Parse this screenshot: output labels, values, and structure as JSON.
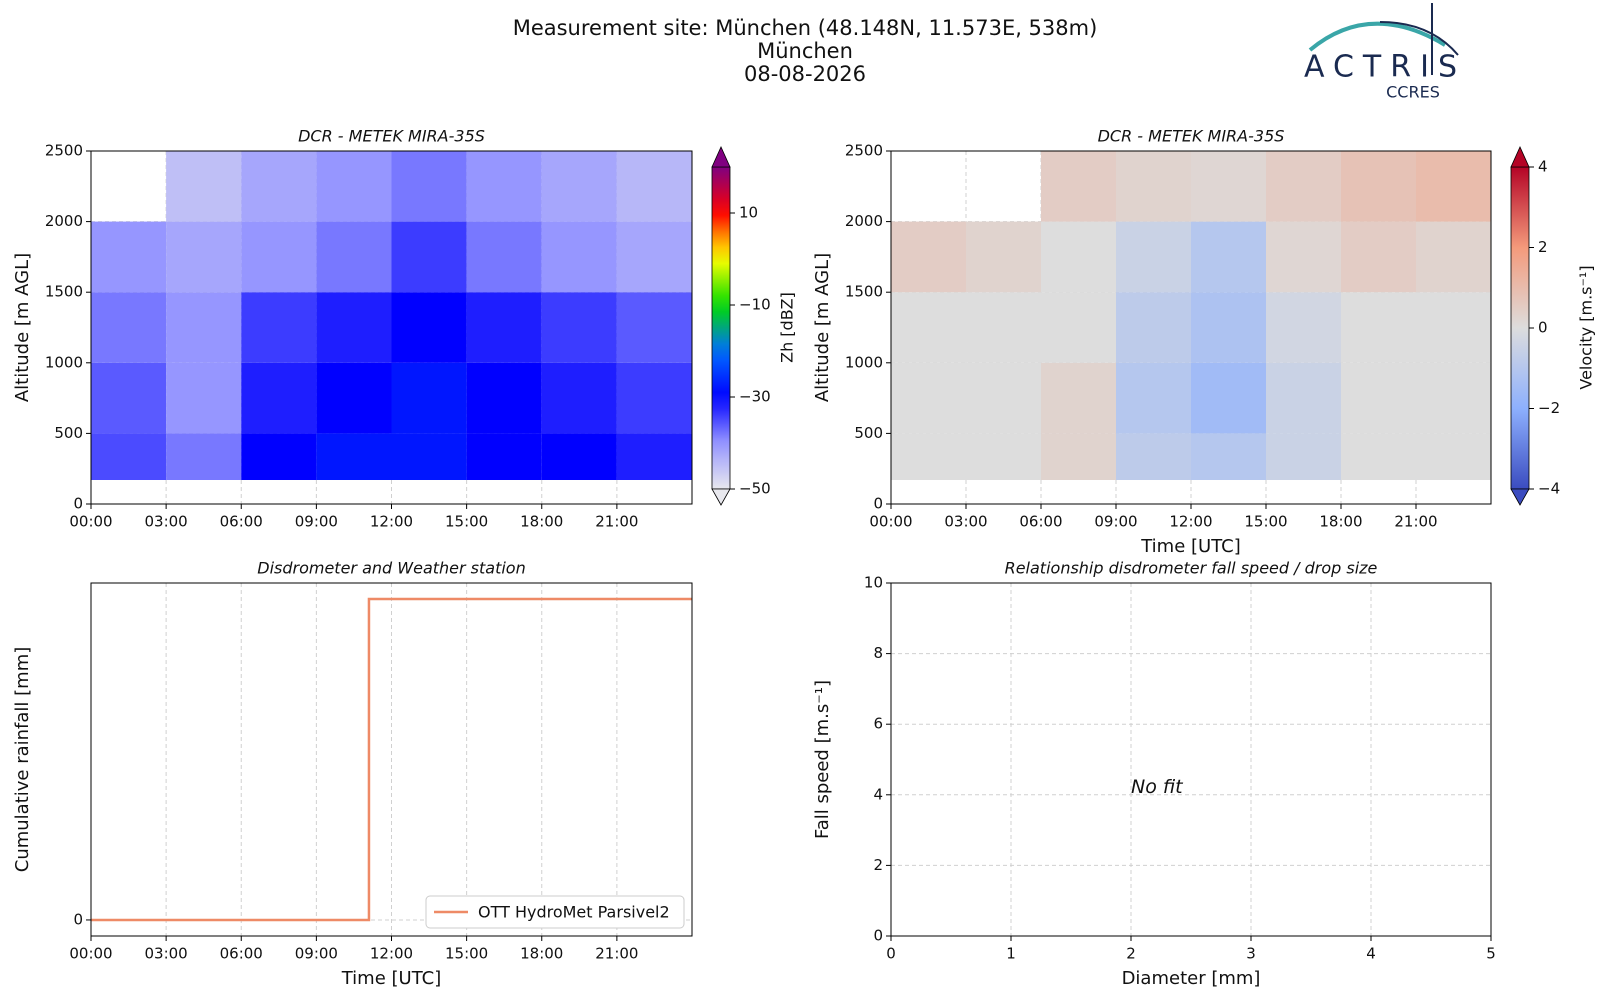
{
  "header": {
    "title": "Measurement site: München (48.148N, 11.573E, 538m)",
    "site": "München",
    "date": "08-08-2026"
  },
  "logo": {
    "name": "ACTRIS",
    "sub": "CCRES"
  },
  "chart_data": [
    {
      "type": "heatmap",
      "title": "DCR - METEK MIRA-35S",
      "ylabel": "Altitude [m AGL]",
      "colormap": "rainbow",
      "xbins": [
        0,
        3,
        6,
        9,
        12,
        15,
        18,
        21,
        24
      ],
      "ybins": [
        170,
        500,
        1000,
        1500,
        2000,
        2500
      ],
      "values": [
        [
          -35,
          -38,
          -30,
          -28,
          -28,
          -30,
          -30,
          -32
        ],
        [
          -36,
          -40,
          -32,
          -30,
          -28,
          -30,
          -32,
          -34
        ],
        [
          -38,
          -40,
          -34,
          -32,
          -30,
          -32,
          -34,
          -36
        ],
        [
          -40,
          -42,
          -40,
          -38,
          -34,
          -38,
          -40,
          -42
        ],
        [
          null,
          -45,
          -42,
          -40,
          -38,
          -40,
          -42,
          -44
        ]
      ],
      "xlim": [
        0,
        24
      ],
      "xticks": [
        {
          "value": 0,
          "label": "00:00"
        },
        {
          "value": 3,
          "label": "03:00"
        },
        {
          "value": 6,
          "label": "06:00"
        },
        {
          "value": 9,
          "label": "09:00"
        },
        {
          "value": 12,
          "label": "12:00"
        },
        {
          "value": 15,
          "label": "15:00"
        },
        {
          "value": 18,
          "label": "18:00"
        },
        {
          "value": 21,
          "label": "21:00"
        }
      ],
      "ylim": [
        0,
        2500
      ],
      "yticks": [
        0,
        500,
        1000,
        1500,
        2000,
        2500
      ],
      "grid": true,
      "clim": [
        -50,
        20
      ],
      "cticks": [
        {
          "value": -50,
          "label": "−50"
        },
        {
          "value": -30,
          "label": "−30"
        },
        {
          "value": -10,
          "label": "−10"
        },
        10
      ],
      "clabel": "Zh [dBZ]"
    },
    {
      "type": "heatmap",
      "title": "DCR - METEK MIRA-35S",
      "xlabel": "Time [UTC]",
      "ylabel": "Altitude [m AGL]",
      "colormap": "coolwarm",
      "xbins": [
        0,
        3,
        6,
        9,
        12,
        15,
        18,
        21,
        24
      ],
      "ybins": [
        170,
        500,
        1000,
        1500,
        2000,
        2500
      ],
      "values": [
        [
          0,
          0,
          0.3,
          -0.8,
          -1,
          -0.5,
          0,
          0
        ],
        [
          0,
          0,
          0.3,
          -1,
          -1.5,
          -0.5,
          0,
          0
        ],
        [
          0,
          0,
          0,
          -0.8,
          -1.2,
          -0.3,
          0,
          0
        ],
        [
          0.5,
          0.3,
          0,
          -0.5,
          -1,
          0.2,
          0.5,
          0.3
        ],
        [
          null,
          null,
          0.5,
          0.3,
          0.2,
          0.5,
          0.8,
          1
        ]
      ],
      "xlim": [
        0,
        24
      ],
      "xticks": [
        {
          "value": 0,
          "label": "00:00"
        },
        {
          "value": 3,
          "label": "03:00"
        },
        {
          "value": 6,
          "label": "06:00"
        },
        {
          "value": 9,
          "label": "09:00"
        },
        {
          "value": 12,
          "label": "12:00"
        },
        {
          "value": 15,
          "label": "15:00"
        },
        {
          "value": 18,
          "label": "18:00"
        },
        {
          "value": 21,
          "label": "21:00"
        }
      ],
      "ylim": [
        0,
        2500
      ],
      "yticks": [
        0,
        500,
        1000,
        1500,
        2000,
        2500
      ],
      "grid": true,
      "clim": [
        -4,
        4
      ],
      "cticks": [
        {
          "value": -4,
          "label": "−4"
        },
        {
          "value": -2,
          "label": "−2"
        },
        0,
        2,
        4
      ],
      "clabel": "Velocity [m.s⁻¹]"
    },
    {
      "type": "line",
      "title": "Disdrometer and Weather station",
      "xlabel": "Time [UTC]",
      "ylabel": "Cumulative rainfall [mm]",
      "x": [
        0,
        11.1,
        11.1,
        24
      ],
      "series": [
        {
          "name": "OTT HydroMet Parsivel2",
          "color": "#ee8a66",
          "values": [
            0,
            0,
            0.2,
            0.2
          ]
        }
      ],
      "xlim": [
        0,
        24
      ],
      "xticks": [
        {
          "value": 0,
          "label": "00:00"
        },
        {
          "value": 3,
          "label": "03:00"
        },
        {
          "value": 6,
          "label": "06:00"
        },
        {
          "value": 9,
          "label": "09:00"
        },
        {
          "value": 12,
          "label": "12:00"
        },
        {
          "value": 15,
          "label": "15:00"
        },
        {
          "value": 18,
          "label": "18:00"
        },
        {
          "value": 21,
          "label": "21:00"
        }
      ],
      "ylim": [
        -0.01,
        0.21
      ],
      "yticks": [
        0
      ],
      "grid": true,
      "legend": "lower right"
    },
    {
      "type": "scatter",
      "title": "Relationship disdrometer fall speed / drop size",
      "xlabel": "Diameter [mm]",
      "ylabel": "Fall speed [m.s⁻¹]",
      "annotation": "No fit",
      "xlim": [
        0,
        5
      ],
      "xticks": [
        0,
        1,
        2,
        3,
        4,
        5
      ],
      "ylim": [
        0,
        10
      ],
      "yticks": [
        0,
        2,
        4,
        6,
        8,
        10
      ],
      "grid": true
    }
  ]
}
